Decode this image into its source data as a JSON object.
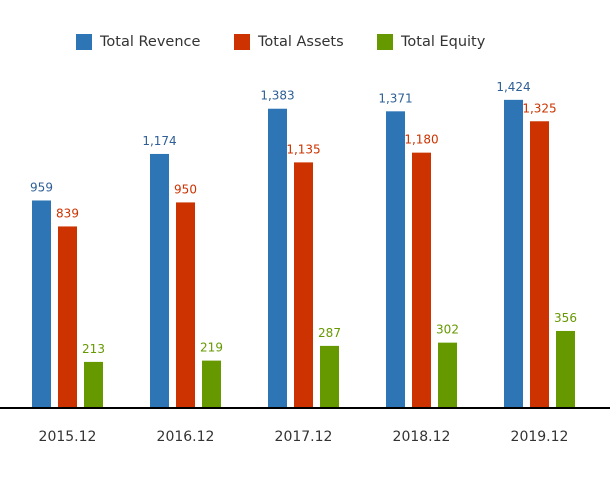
{
  "chart_data": {
    "type": "bar",
    "title": "",
    "xlabel": "",
    "ylabel": "",
    "categories": [
      "2015.12",
      "2016.12",
      "2017.12",
      "2018.12",
      "2019.12"
    ],
    "series": [
      {
        "name": "Total Revence",
        "color": "#2e75b6",
        "label_color": "#2e5f96",
        "values": [
          959,
          1174,
          1383,
          1371,
          1424
        ]
      },
      {
        "name": "Total Assets",
        "color": "#cc3300",
        "label_color": "#cc3300",
        "values": [
          839,
          950,
          1135,
          1180,
          1325
        ]
      },
      {
        "name": "Total Equity",
        "color": "#669900",
        "label_color": "#669900",
        "values": [
          213,
          219,
          287,
          302,
          356
        ]
      }
    ],
    "data_labels": [
      [
        "959",
        "1,174",
        "1,383",
        "1,371",
        "1,424"
      ],
      [
        "839",
        "950",
        "1,135",
        "1,180",
        "1,325"
      ],
      [
        "213",
        "219",
        "287",
        "302",
        "356"
      ]
    ],
    "legend_position": "top",
    "grid": false,
    "y_axis_visible": false
  }
}
